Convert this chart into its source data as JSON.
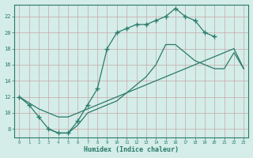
{
  "xlabel": "Humidex (Indice chaleur)",
  "bg_color": "#d4ede8",
  "grid_color": "#c0ddd8",
  "line_color": "#2a7a6a",
  "xlim": [
    -0.5,
    23.5
  ],
  "ylim": [
    7.0,
    23.5
  ],
  "xticks": [
    0,
    1,
    2,
    3,
    4,
    5,
    6,
    7,
    8,
    9,
    10,
    11,
    12,
    13,
    14,
    15,
    16,
    17,
    18,
    19,
    20,
    21,
    22,
    23
  ],
  "yticks": [
    8,
    10,
    12,
    14,
    16,
    18,
    20,
    22
  ],
  "line1_x": [
    0,
    1,
    2,
    3,
    4,
    5,
    6,
    7,
    8,
    9,
    10,
    11,
    12,
    13,
    14,
    15,
    16,
    17,
    18,
    19,
    20
  ],
  "line1_y": [
    12,
    11,
    9.5,
    8,
    7.5,
    7.5,
    9.0,
    11.0,
    13.0,
    18.0,
    20.0,
    20.5,
    21.0,
    21.0,
    21.5,
    22.0,
    23.0,
    22.0,
    21.5,
    20.0,
    19.5
  ],
  "line2_x": [
    0,
    2,
    3,
    4,
    5,
    6,
    7,
    8,
    9,
    10,
    11,
    12,
    13,
    14,
    15,
    16,
    17,
    18,
    19,
    20,
    21,
    22,
    23
  ],
  "line2_y": [
    12,
    10.5,
    10.0,
    9.5,
    9.5,
    10.0,
    10.5,
    11.0,
    11.5,
    12.0,
    12.5,
    13.0,
    13.5,
    14.0,
    14.5,
    15.0,
    15.5,
    16.0,
    16.5,
    17.0,
    17.5,
    18.0,
    15.5
  ],
  "line3_x": [
    3,
    4,
    5,
    6,
    7,
    8,
    9,
    10,
    11,
    12,
    13,
    14,
    15,
    16,
    17,
    18,
    19,
    20,
    21,
    22,
    23
  ],
  "line3_y": [
    8.0,
    7.5,
    7.5,
    8.5,
    10.0,
    10.5,
    11.0,
    11.5,
    12.5,
    13.5,
    14.5,
    16.0,
    18.5,
    18.5,
    17.5,
    16.5,
    16.0,
    15.5,
    15.5,
    17.5,
    15.5
  ]
}
